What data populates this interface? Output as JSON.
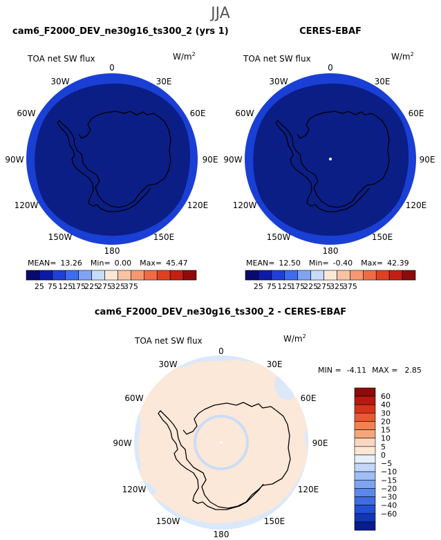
{
  "figure": {
    "season": "JJA",
    "panels": [
      {
        "title": "cam6_F2000_DEV_ne30g16_ts300_2 (yrs 1)",
        "variable": "TOA net SW flux",
        "units_base": "W/m",
        "units_exp": "2",
        "stats": {
          "mean_label": "MEAN=",
          "mean": "13.26",
          "min_label": "Min=",
          "min": "0.00",
          "max_label": "Max=",
          "max": "45.47"
        }
      },
      {
        "title": "CERES-EBAF",
        "variable": "TOA net SW flux",
        "units_base": "W/m",
        "units_exp": "2",
        "stats": {
          "mean_label": "MEAN=",
          "mean": "12.50",
          "min_label": "Min=",
          "min": "-0.40",
          "max_label": "Max=",
          "max": "42.39"
        }
      }
    ],
    "diff": {
      "title": "cam6_F2000_DEV_ne30g16_ts300_2 - CERES-EBAF",
      "variable": "TOA net SW flux",
      "units_base": "W/m",
      "units_exp": "2",
      "stats": {
        "min_label": "MIN =",
        "min": "-4.11",
        "max_label": "MAX =",
        "max": "2.85"
      }
    },
    "lon_labels": [
      "0",
      "30E",
      "60E",
      "90E",
      "120E",
      "150E",
      "180",
      "150W",
      "120W",
      "90W",
      "60W",
      "30W"
    ],
    "top_colorbar": {
      "colors": [
        "#0a0a6e",
        "#0d1aa8",
        "#1f3fd8",
        "#3d6cf0",
        "#7fa4f5",
        "#c6dcfb",
        "#fbe7d6",
        "#f8c3a4",
        "#f59871",
        "#ef6c45",
        "#e0401f",
        "#c41f12",
        "#8f0a0a"
      ],
      "labels": [
        "25",
        "75",
        "125",
        "175",
        "225",
        "275",
        "325",
        "375"
      ]
    },
    "diff_colorbar": {
      "colors": [
        "#8f0a0a",
        "#b91810",
        "#d8321a",
        "#ea5a30",
        "#f2814f",
        "#f6a67a",
        "#fad7c2",
        "#fbe7d6",
        "#e6f0fb",
        "#c4d7f8",
        "#a0bdf5",
        "#7ea3f1",
        "#5c88ec",
        "#3d6ce4",
        "#2250d4",
        "#1234b6",
        "#081c8c"
      ],
      "labels": [
        "60",
        "40",
        "30",
        "20",
        "15",
        "10",
        "5",
        "0",
        "−5",
        "−10",
        "−15",
        "−20",
        "−30",
        "−40",
        "−60"
      ]
    },
    "map_colors": {
      "ocean_ring": "#1a3fd4",
      "interior": "#0b1e86",
      "diff_background": "#dbe8fa",
      "diff_land": "#fbe8d8"
    }
  }
}
